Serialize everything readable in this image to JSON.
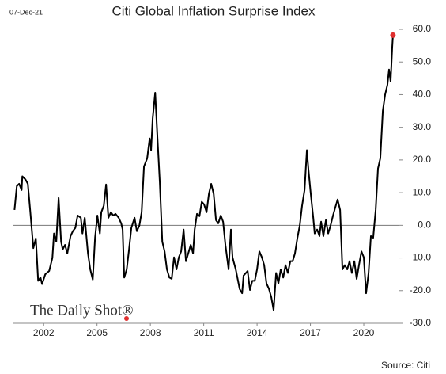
{
  "chart_data": {
    "type": "line",
    "title": "Citi  Global Inflation Surprise Index",
    "date": "07-Dec-21",
    "source": "Source: Citi",
    "watermark": "The Daily Shot®",
    "color": "#000000",
    "last_point_color": "#e03030",
    "zero_line": true,
    "xlim": [
      2000.3,
      2022.0
    ],
    "xticks": [
      2002,
      2005,
      2008,
      2011,
      2014,
      2017,
      2020
    ],
    "ylim": [
      -30,
      60
    ],
    "yticks": [
      {
        "value": -30,
        "label": "-30.0"
      },
      {
        "value": -20,
        "label": "-20.0"
      },
      {
        "value": -10,
        "label": "-10.0"
      },
      {
        "value": 0,
        "label": "0.0"
      },
      {
        "value": 10,
        "label": "10.0"
      },
      {
        "value": 20,
        "label": "20.0"
      },
      {
        "value": 30,
        "label": "30.0"
      },
      {
        "value": 40,
        "label": "40.0"
      },
      {
        "value": 50,
        "label": "50.0"
      },
      {
        "value": 60,
        "label": "60.0"
      }
    ],
    "x": [
      2000.36,
      2000.49,
      2000.62,
      2000.76,
      2000.8,
      2000.98,
      2001.11,
      2001.24,
      2001.42,
      2001.56,
      2001.69,
      2001.82,
      2001.91,
      2002.09,
      2002.31,
      2002.49,
      2002.58,
      2002.71,
      2002.84,
      2002.98,
      2003.07,
      2003.2,
      2003.33,
      2003.51,
      2003.64,
      2003.78,
      2003.91,
      2004.09,
      2004.18,
      2004.31,
      2004.49,
      2004.62,
      2004.76,
      2004.89,
      2005.02,
      2005.16,
      2005.24,
      2005.38,
      2005.51,
      2005.64,
      2005.78,
      2005.91,
      2006.04,
      2006.22,
      2006.36,
      2006.44,
      2006.53,
      2006.67,
      2006.8,
      2006.93,
      2007.11,
      2007.24,
      2007.38,
      2007.51,
      2007.64,
      2007.82,
      2007.96,
      2008.04,
      2008.13,
      2008.27,
      2008.4,
      2008.53,
      2008.67,
      2008.8,
      2008.93,
      2009.07,
      2009.2,
      2009.33,
      2009.47,
      2009.6,
      2009.73,
      2009.87,
      2010.0,
      2010.13,
      2010.27,
      2010.4,
      2010.49,
      2010.62,
      2010.76,
      2010.89,
      2011.02,
      2011.16,
      2011.29,
      2011.42,
      2011.56,
      2011.69,
      2011.82,
      2011.96,
      2012.09,
      2012.22,
      2012.4,
      2012.53,
      2012.62,
      2012.8,
      2012.93,
      2013.02,
      2013.16,
      2013.24,
      2013.47,
      2013.6,
      2013.73,
      2013.87,
      2014.0,
      2014.13,
      2014.27,
      2014.4,
      2014.53,
      2014.67,
      2014.8,
      2014.93,
      2015.07,
      2015.2,
      2015.33,
      2015.47,
      2015.6,
      2015.73,
      2015.87,
      2016.0,
      2016.13,
      2016.27,
      2016.4,
      2016.53,
      2016.67,
      2016.8,
      2016.89,
      2017.02,
      2017.16,
      2017.24,
      2017.38,
      2017.51,
      2017.6,
      2017.73,
      2017.87,
      2018.0,
      2018.13,
      2018.27,
      2018.4,
      2018.53,
      2018.67,
      2018.8,
      2018.93,
      2019.07,
      2019.2,
      2019.33,
      2019.47,
      2019.6,
      2019.73,
      2019.87,
      2020.0,
      2020.13,
      2020.27,
      2020.4,
      2020.53,
      2020.67,
      2020.8,
      2020.93,
      2021.07,
      2021.2,
      2021.33,
      2021.42,
      2021.51,
      2021.6,
      2021.64
    ],
    "values": [
      4.7,
      12,
      12.7,
      10.8,
      15,
      14,
      12.7,
      4.7,
      -7,
      -4,
      -17,
      -16,
      -18,
      -15,
      -14,
      -10,
      -2.5,
      -5,
      8.4,
      -5,
      -7.4,
      -6,
      -8.6,
      -3.3,
      -1.8,
      -0.8,
      3,
      2.3,
      -2.5,
      2.3,
      -8.6,
      -13.5,
      -16.6,
      -3.8,
      3,
      -2.5,
      4,
      6,
      12.5,
      2.3,
      4,
      3,
      3.5,
      2.3,
      0.6,
      -1.3,
      -16,
      -13.5,
      -7.4,
      -0.8,
      2.3,
      -1.8,
      -0.1,
      4,
      18,
      20.5,
      26.6,
      23,
      32.7,
      40.6,
      26.6,
      13.2,
      -5,
      -8,
      -13.5,
      -16,
      -16.4,
      -9.8,
      -13.5,
      -9.8,
      -8,
      -1.3,
      -11,
      -8.6,
      -6,
      -8.6,
      -1.3,
      3.5,
      2.8,
      7.2,
      6.4,
      4,
      9.6,
      12.7,
      9.6,
      1.6,
      0.6,
      3,
      1.1,
      -6,
      -13.5,
      -1.3,
      -9.8,
      -13.5,
      -17,
      -19.5,
      -20.8,
      -15.4,
      -14,
      -19.8,
      -17,
      -17,
      -13.5,
      -8,
      -9.8,
      -12.2,
      -17.8,
      -19.5,
      -22,
      -26,
      -14.6,
      -17.8,
      -13.5,
      -16,
      -12.2,
      -14.6,
      -11,
      -11,
      -8.6,
      -3.8,
      -0.1,
      6,
      10.8,
      23,
      17,
      9.6,
      2.3,
      -2.5,
      -1.3,
      -3.3,
      1.1,
      -3.3,
      1.6,
      -2.5,
      -0.1,
      3,
      5.5,
      7.9,
      4.7,
      -13.5,
      -12.2,
      -13.5,
      -11,
      -14.6,
      -11,
      -16.4,
      -12.2,
      -8,
      -9.8,
      -20.8,
      -14.6,
      -3.3,
      -3.8,
      4.7,
      17.4,
      20.5,
      35,
      40,
      43,
      47.7,
      44,
      54.5,
      58.2
    ]
  }
}
